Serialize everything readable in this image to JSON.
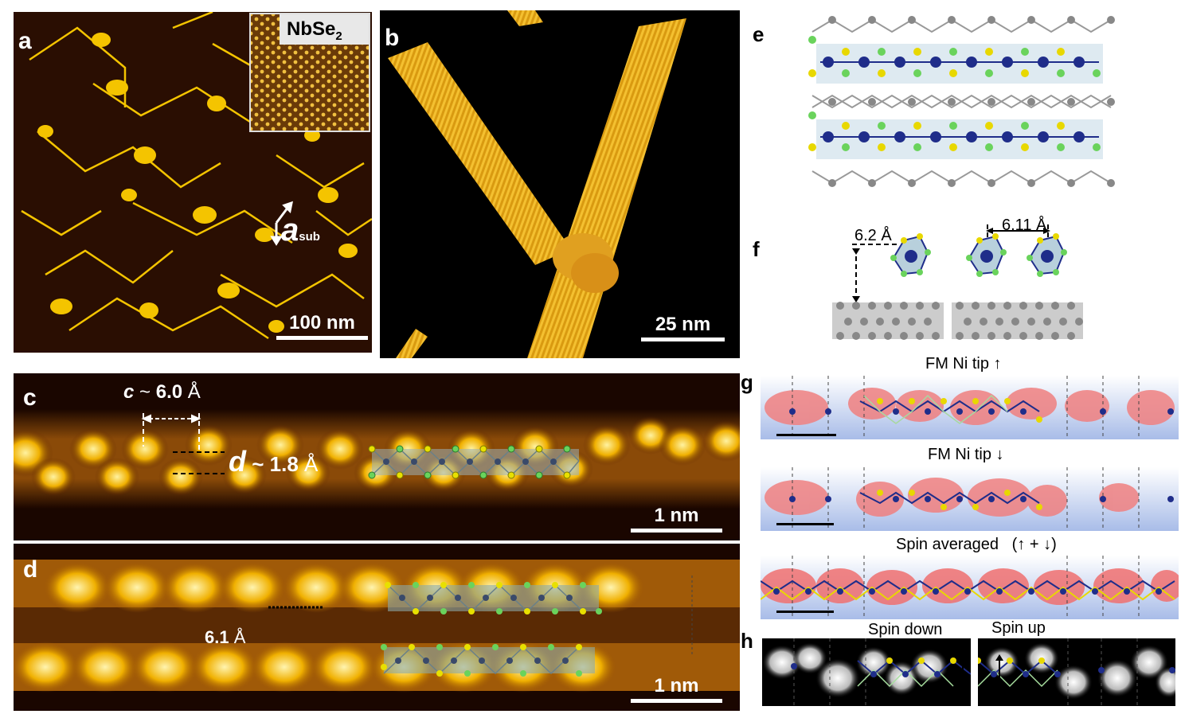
{
  "panels": {
    "a": {
      "label": "a",
      "inset_label": "NbSe",
      "inset_sub": "2",
      "axis_symbol": "a",
      "axis_sub": "sub",
      "scale": "100 nm"
    },
    "b": {
      "label": "b",
      "scale": "25 nm"
    },
    "c": {
      "label": "c",
      "c_sym": "c",
      "c_tilde": " ~ ",
      "c_val": "6.0",
      "c_unit": " Å",
      "d_sym": "d",
      "d_tilde": " ~ ",
      "d_val": "1.8",
      "d_unit": " Å",
      "scale": "1 nm"
    },
    "d": {
      "label": "d",
      "spacing_val": "6.1",
      "spacing_unit": " Å",
      "scale": "1 nm"
    },
    "e": {
      "label": "e"
    },
    "f": {
      "label": "f",
      "height": "6.2 Å",
      "spacing": "6.11 Å"
    },
    "g": {
      "label": "g",
      "title_up": "FM Ni tip ↑",
      "title_down": "FM Ni tip ↓",
      "title_avg": "Spin averaged   (↑ + ↓)"
    },
    "h": {
      "label": "h",
      "spin_down": "Spin down",
      "spin_up": "Spin up"
    }
  },
  "colors": {
    "stm_bg": "#1a0800",
    "stm_yellow": "#f5c200",
    "nb": "#1f2d8a",
    "se_yellow": "#e8d800",
    "se_green": "#6ad35c",
    "substrate": "#8a8a8a"
  }
}
